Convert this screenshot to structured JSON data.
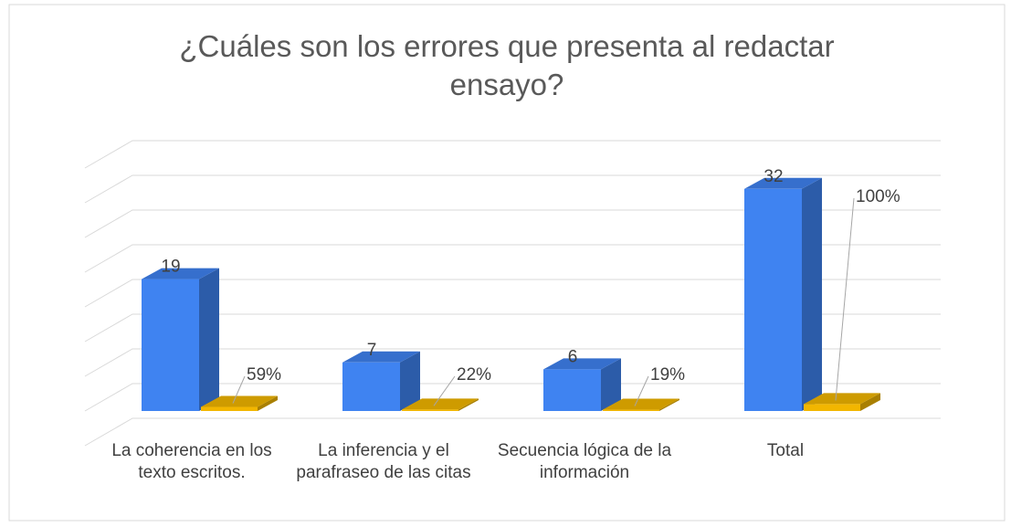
{
  "chart_data": {
    "type": "bar3d",
    "title": "¿Cuáles son los errores que presenta al redactar ensayo?",
    "categories": [
      "La coherencia en los  texto escritos.",
      "La inferencia y el parafraseo de las citas",
      "Secuencia lógica de la información",
      "Total"
    ],
    "series": [
      {
        "color": "#3f83f1",
        "values": [
          19,
          7,
          6,
          32
        ]
      },
      {
        "color": "#f2b600",
        "values": [
          0.59,
          0.22,
          0.19,
          1
        ],
        "value_labels": [
          "59%",
          "22%",
          "19%",
          "100%"
        ]
      }
    ],
    "ylim": [
      0,
      40
    ],
    "yticks": [
      0,
      5,
      10,
      15,
      20,
      25,
      30,
      35,
      40
    ],
    "grid": true
  }
}
